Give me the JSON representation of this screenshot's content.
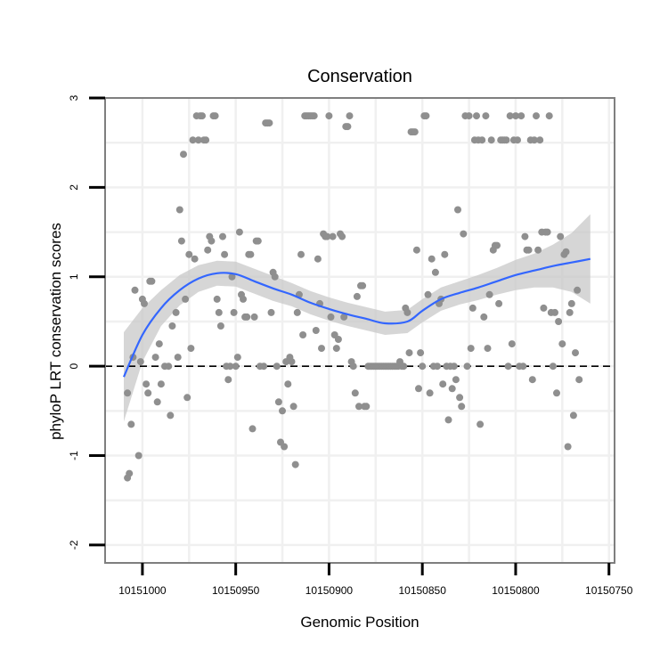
{
  "chart_data": {
    "type": "scatter",
    "title": "Conservation",
    "xlabel": "Genomic Position",
    "ylabel": "phyloP LRT conservation scores",
    "x_reversed": true,
    "xlim": [
      10151020,
      10150747
    ],
    "ylim": [
      -2.2,
      3.0
    ],
    "xticks": [
      10151000,
      10150950,
      10150900,
      10150850,
      10150800,
      10150750
    ],
    "xtick_labels": [
      "10151000",
      "10150950",
      "10150900",
      "10150850",
      "10150800",
      "10150750"
    ],
    "yticks": [
      -2,
      -1,
      0,
      1,
      2,
      3
    ],
    "ytick_labels": [
      "-2",
      "-1",
      "0",
      "1",
      "2",
      "3"
    ],
    "grid": true,
    "reference_line": {
      "y": 0,
      "style": "dashed"
    },
    "colors": {
      "points": "#8f8f8f",
      "smooth": "#3366ff",
      "band": "#c8c8c8",
      "frame": "#7f7f7f"
    },
    "points": [
      [
        10151008,
        -0.3
      ],
      [
        10151008,
        -1.25
      ],
      [
        10151007,
        -1.2
      ],
      [
        10151006,
        -0.65
      ],
      [
        10151005,
        0.1
      ],
      [
        10151004,
        0.85
      ],
      [
        10151002,
        -1.0
      ],
      [
        10151001,
        0.05
      ],
      [
        10151000,
        0.75
      ],
      [
        10150999,
        0.7
      ],
      [
        10150998,
        -0.2
      ],
      [
        10150997,
        -0.3
      ],
      [
        10150996,
        0.95
      ],
      [
        10150995,
        0.95
      ],
      [
        10150993,
        0.1
      ],
      [
        10150992,
        -0.4
      ],
      [
        10150991,
        0.25
      ],
      [
        10150990,
        -0.2
      ],
      [
        10150988,
        0.0
      ],
      [
        10150986,
        0.0
      ],
      [
        10150985,
        -0.55
      ],
      [
        10150984,
        0.45
      ],
      [
        10150982,
        0.6
      ],
      [
        10150981,
        0.1
      ],
      [
        10150980,
        1.75
      ],
      [
        10150979,
        1.4
      ],
      [
        10150978,
        2.37
      ],
      [
        10150977,
        0.75
      ],
      [
        10150976,
        -0.35
      ],
      [
        10150975,
        1.25
      ],
      [
        10150974,
        0.2
      ],
      [
        10150973,
        2.53
      ],
      [
        10150972,
        1.2
      ],
      [
        10150971,
        2.8
      ],
      [
        10150970,
        2.53
      ],
      [
        10150969,
        2.8
      ],
      [
        10150968,
        2.8
      ],
      [
        10150967,
        2.53
      ],
      [
        10150966,
        2.53
      ],
      [
        10150965,
        1.3
      ],
      [
        10150964,
        1.45
      ],
      [
        10150963,
        1.4
      ],
      [
        10150962,
        2.8
      ],
      [
        10150961,
        2.8
      ],
      [
        10150960,
        0.75
      ],
      [
        10150959,
        0.6
      ],
      [
        10150958,
        0.45
      ],
      [
        10150957,
        1.45
      ],
      [
        10150956,
        1.25
      ],
      [
        10150955,
        0.0
      ],
      [
        10150954,
        -0.15
      ],
      [
        10150953,
        0.0
      ],
      [
        10150952,
        1.0
      ],
      [
        10150951,
        0.6
      ],
      [
        10150950,
        0.0
      ],
      [
        10150949,
        0.1
      ],
      [
        10150948,
        1.5
      ],
      [
        10150947,
        0.8
      ],
      [
        10150946,
        0.75
      ],
      [
        10150945,
        0.55
      ],
      [
        10150944,
        0.55
      ],
      [
        10150943,
        1.25
      ],
      [
        10150942,
        1.25
      ],
      [
        10150941,
        -0.7
      ],
      [
        10150940,
        0.55
      ],
      [
        10150939,
        1.4
      ],
      [
        10150938,
        1.4
      ],
      [
        10150937,
        0.0
      ],
      [
        10150935,
        0.0
      ],
      [
        10150934,
        2.72
      ],
      [
        10150933,
        2.72
      ],
      [
        10150932,
        2.72
      ],
      [
        10150931,
        0.6
      ],
      [
        10150930,
        1.05
      ],
      [
        10150929,
        1.0
      ],
      [
        10150928,
        0.0
      ],
      [
        10150927,
        -0.4
      ],
      [
        10150926,
        -0.85
      ],
      [
        10150925,
        -0.5
      ],
      [
        10150924,
        -0.9
      ],
      [
        10150923,
        0.05
      ],
      [
        10150922,
        -0.2
      ],
      [
        10150921,
        0.1
      ],
      [
        10150920,
        0.05
      ],
      [
        10150919,
        -0.45
      ],
      [
        10150918,
        -1.1
      ],
      [
        10150917,
        0.6
      ],
      [
        10150916,
        0.8
      ],
      [
        10150915,
        1.25
      ],
      [
        10150914,
        0.35
      ],
      [
        10150913,
        2.8
      ],
      [
        10150912,
        2.8
      ],
      [
        10150911,
        2.8
      ],
      [
        10150910,
        2.8
      ],
      [
        10150909,
        2.8
      ],
      [
        10150908,
        2.8
      ],
      [
        10150907,
        0.4
      ],
      [
        10150906,
        1.2
      ],
      [
        10150905,
        0.7
      ],
      [
        10150904,
        0.2
      ],
      [
        10150903,
        1.48
      ],
      [
        10150902,
        1.45
      ],
      [
        10150901,
        1.45
      ],
      [
        10150900,
        2.8
      ],
      [
        10150899,
        0.55
      ],
      [
        10150898,
        1.45
      ],
      [
        10150897,
        0.35
      ],
      [
        10150896,
        0.2
      ],
      [
        10150895,
        0.3
      ],
      [
        10150894,
        1.48
      ],
      [
        10150893,
        1.45
      ],
      [
        10150892,
        0.55
      ],
      [
        10150891,
        2.68
      ],
      [
        10150890,
        2.68
      ],
      [
        10150889,
        2.8
      ],
      [
        10150888,
        0.05
      ],
      [
        10150887,
        0.0
      ],
      [
        10150886,
        -0.3
      ],
      [
        10150885,
        0.78
      ],
      [
        10150884,
        -0.45
      ],
      [
        10150883,
        0.9
      ],
      [
        10150882,
        0.9
      ],
      [
        10150881,
        -0.45
      ],
      [
        10150880,
        -0.45
      ],
      [
        10150879,
        0.0
      ],
      [
        10150878,
        0.0
      ],
      [
        10150877,
        0.0
      ],
      [
        10150876,
        0.0
      ],
      [
        10150875,
        0.0
      ],
      [
        10150874,
        0.0
      ],
      [
        10150873,
        0.0
      ],
      [
        10150872,
        0.0
      ],
      [
        10150871,
        0.0
      ],
      [
        10150870,
        0.0
      ],
      [
        10150869,
        0.0
      ],
      [
        10150868,
        0.0
      ],
      [
        10150867,
        0.0
      ],
      [
        10150866,
        0.0
      ],
      [
        10150865,
        0.0
      ],
      [
        10150864,
        0.0
      ],
      [
        10150863,
        0.0
      ],
      [
        10150862,
        0.05
      ],
      [
        10150861,
        0.0
      ],
      [
        10150860,
        0.0
      ],
      [
        10150859,
        0.65
      ],
      [
        10150858,
        0.6
      ],
      [
        10150857,
        0.15
      ],
      [
        10150856,
        2.62
      ],
      [
        10150855,
        2.62
      ],
      [
        10150854,
        2.62
      ],
      [
        10150853,
        1.3
      ],
      [
        10150852,
        -0.25
      ],
      [
        10150851,
        0.15
      ],
      [
        10150850,
        0.0
      ],
      [
        10150849,
        2.8
      ],
      [
        10150848,
        2.8
      ],
      [
        10150847,
        0.8
      ],
      [
        10150846,
        -0.3
      ],
      [
        10150845,
        1.2
      ],
      [
        10150844,
        0.0
      ],
      [
        10150843,
        1.05
      ],
      [
        10150842,
        0.0
      ],
      [
        10150841,
        0.7
      ],
      [
        10150840,
        0.75
      ],
      [
        10150839,
        -0.2
      ],
      [
        10150838,
        1.25
      ],
      [
        10150837,
        0.0
      ],
      [
        10150836,
        -0.6
      ],
      [
        10150835,
        0.0
      ],
      [
        10150834,
        -0.25
      ],
      [
        10150833,
        0.0
      ],
      [
        10150832,
        -0.15
      ],
      [
        10150831,
        1.75
      ],
      [
        10150830,
        -0.35
      ],
      [
        10150829,
        -0.45
      ],
      [
        10150828,
        1.48
      ],
      [
        10150827,
        2.8
      ],
      [
        10150826,
        0.0
      ],
      [
        10150825,
        2.8
      ],
      [
        10150824,
        0.2
      ],
      [
        10150823,
        0.65
      ],
      [
        10150822,
        2.53
      ],
      [
        10150821,
        2.8
      ],
      [
        10150820,
        2.53
      ],
      [
        10150819,
        -0.65
      ],
      [
        10150818,
        2.53
      ],
      [
        10150817,
        0.55
      ],
      [
        10150816,
        2.8
      ],
      [
        10150815,
        0.2
      ],
      [
        10150814,
        0.8
      ],
      [
        10150813,
        2.53
      ],
      [
        10150812,
        1.3
      ],
      [
        10150811,
        1.35
      ],
      [
        10150810,
        1.35
      ],
      [
        10150809,
        0.7
      ],
      [
        10150808,
        2.53
      ],
      [
        10150807,
        2.53
      ],
      [
        10150806,
        2.53
      ],
      [
        10150805,
        2.53
      ],
      [
        10150804,
        0.0
      ],
      [
        10150803,
        2.8
      ],
      [
        10150802,
        0.25
      ],
      [
        10150801,
        2.53
      ],
      [
        10150800,
        2.8
      ],
      [
        10150799,
        2.53
      ],
      [
        10150798,
        0.0
      ],
      [
        10150797,
        2.8
      ],
      [
        10150796,
        0.0
      ],
      [
        10150795,
        1.45
      ],
      [
        10150794,
        1.3
      ],
      [
        10150793,
        1.3
      ],
      [
        10150792,
        2.53
      ],
      [
        10150791,
        -0.15
      ],
      [
        10150790,
        2.53
      ],
      [
        10150789,
        2.8
      ],
      [
        10150788,
        1.3
      ],
      [
        10150787,
        2.53
      ],
      [
        10150786,
        1.5
      ],
      [
        10150785,
        0.65
      ],
      [
        10150784,
        1.5
      ],
      [
        10150783,
        1.5
      ],
      [
        10150782,
        2.8
      ],
      [
        10150781,
        0.6
      ],
      [
        10150780,
        0.0
      ],
      [
        10150779,
        0.6
      ],
      [
        10150778,
        -0.3
      ],
      [
        10150777,
        0.5
      ],
      [
        10150776,
        1.45
      ],
      [
        10150775,
        0.25
      ],
      [
        10150774,
        1.25
      ],
      [
        10150773,
        1.28
      ],
      [
        10150772,
        -0.9
      ],
      [
        10150771,
        0.6
      ],
      [
        10150770,
        0.7
      ],
      [
        10150769,
        -0.55
      ],
      [
        10150768,
        0.15
      ],
      [
        10150767,
        0.85
      ],
      [
        10150766,
        -0.15
      ]
    ],
    "smooth": [
      [
        10151010,
        -0.12
      ],
      [
        10151000,
        0.35
      ],
      [
        10150990,
        0.65
      ],
      [
        10150980,
        0.85
      ],
      [
        10150970,
        0.98
      ],
      [
        10150960,
        1.04
      ],
      [
        10150950,
        1.03
      ],
      [
        10150940,
        0.95
      ],
      [
        10150930,
        0.87
      ],
      [
        10150920,
        0.8
      ],
      [
        10150910,
        0.71
      ],
      [
        10150900,
        0.64
      ],
      [
        10150890,
        0.58
      ],
      [
        10150880,
        0.53
      ],
      [
        10150870,
        0.48
      ],
      [
        10150858,
        0.5
      ],
      [
        10150850,
        0.62
      ],
      [
        10150840,
        0.75
      ],
      [
        10150830,
        0.82
      ],
      [
        10150820,
        0.88
      ],
      [
        10150810,
        0.95
      ],
      [
        10150800,
        1.02
      ],
      [
        10150790,
        1.07
      ],
      [
        10150780,
        1.12
      ],
      [
        10150770,
        1.16
      ],
      [
        10150760,
        1.2
      ]
    ],
    "band_width": [
      0.5,
      0.3,
      0.2,
      0.17,
      0.15,
      0.14,
      0.14,
      0.14,
      0.14,
      0.13,
      0.13,
      0.13,
      0.13,
      0.13,
      0.13,
      0.13,
      0.13,
      0.13,
      0.13,
      0.14,
      0.15,
      0.17,
      0.19,
      0.24,
      0.33,
      0.5
    ]
  }
}
